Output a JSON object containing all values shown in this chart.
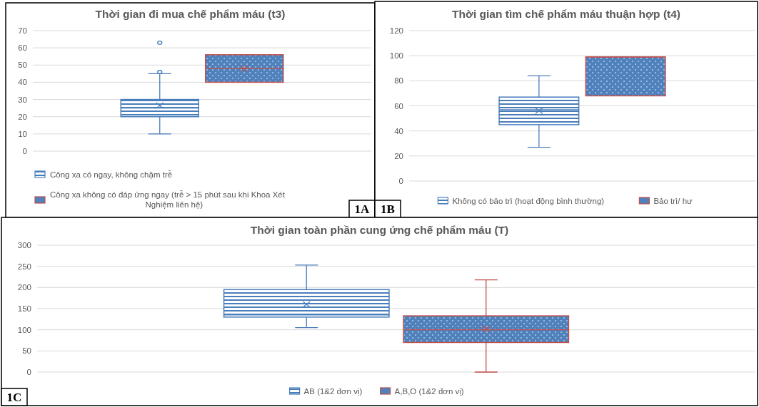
{
  "chart_data": [
    {
      "type": "box",
      "title": "Thời gian đi mua chế phẩm máu (t3)",
      "categories": [
        null
      ],
      "ylim": [
        0,
        70
      ],
      "yticks": [
        0,
        10,
        20,
        30,
        40,
        50,
        60,
        70
      ],
      "grid": "y",
      "legend": "bottom",
      "annotations": [
        "1A"
      ],
      "series": [
        {
          "name": "Công xa có ngay, không chậm trễ",
          "color": "#4a7ebb",
          "boxes": [
            {
              "low": 10,
              "q1": 20,
              "median": 25,
              "q3": 30,
              "high": 45,
              "mean": 26.5,
              "outliers": [
                46,
                63
              ]
            }
          ]
        },
        {
          "name": "Công xa không có đáp ứng ngay (trễ > 15 phút sau khi Khoa Xét Nghiệm liên hệ)",
          "color": "#4f81bd",
          "boxes": [
            {
              "low": 40,
              "q1": 40,
              "median": 48,
              "q3": 56,
              "high": 56,
              "mean": 48
            }
          ]
        }
      ]
    },
    {
      "type": "box",
      "title": "Thời gian tìm chế phẩm máu thuận hợp (t4)",
      "categories": [
        null
      ],
      "ylim": [
        0,
        120
      ],
      "yticks": [
        0,
        20,
        40,
        60,
        80,
        100,
        120
      ],
      "grid": "y",
      "legend": "bottom",
      "annotations": [
        "1B"
      ],
      "series": [
        {
          "name": "Không có bảo trì (hoạt động bình thường)",
          "color": "#4a7ebb",
          "boxes": [
            {
              "low": 27,
              "q1": 45,
              "median": 57,
              "q3": 67,
              "high": 84,
              "mean": 56
            }
          ]
        },
        {
          "name": "Bảo trì/ hư",
          "color": "#4f81bd",
          "boxes": [
            {
              "low": 68,
              "q1": 68,
              "median": 99,
              "q3": 99,
              "high": 99
            }
          ]
        }
      ]
    },
    {
      "type": "box",
      "title": "Thời gian toàn phần cung ứng chế phẩm máu (T)",
      "categories": [
        null
      ],
      "ylim": [
        0,
        300
      ],
      "yticks": [
        0,
        50,
        100,
        150,
        200,
        250,
        300
      ],
      "grid": "y",
      "legend": "bottom",
      "annotations": [
        "1C"
      ],
      "series": [
        {
          "name": "AB (1&2 đơn vị)",
          "color": "#4a7ebb",
          "boxes": [
            {
              "low": 105,
              "q1": 130,
              "median": 135,
              "q3": 195,
              "high": 253,
              "mean": 160
            }
          ]
        },
        {
          "name": "A,B,O  (1&2 đơn vị)",
          "color": "#4f81bd",
          "boxes": [
            {
              "low": 0,
              "q1": 70,
              "median": 100,
              "q3": 133,
              "high": 218,
              "mean": 102
            }
          ]
        }
      ]
    }
  ]
}
